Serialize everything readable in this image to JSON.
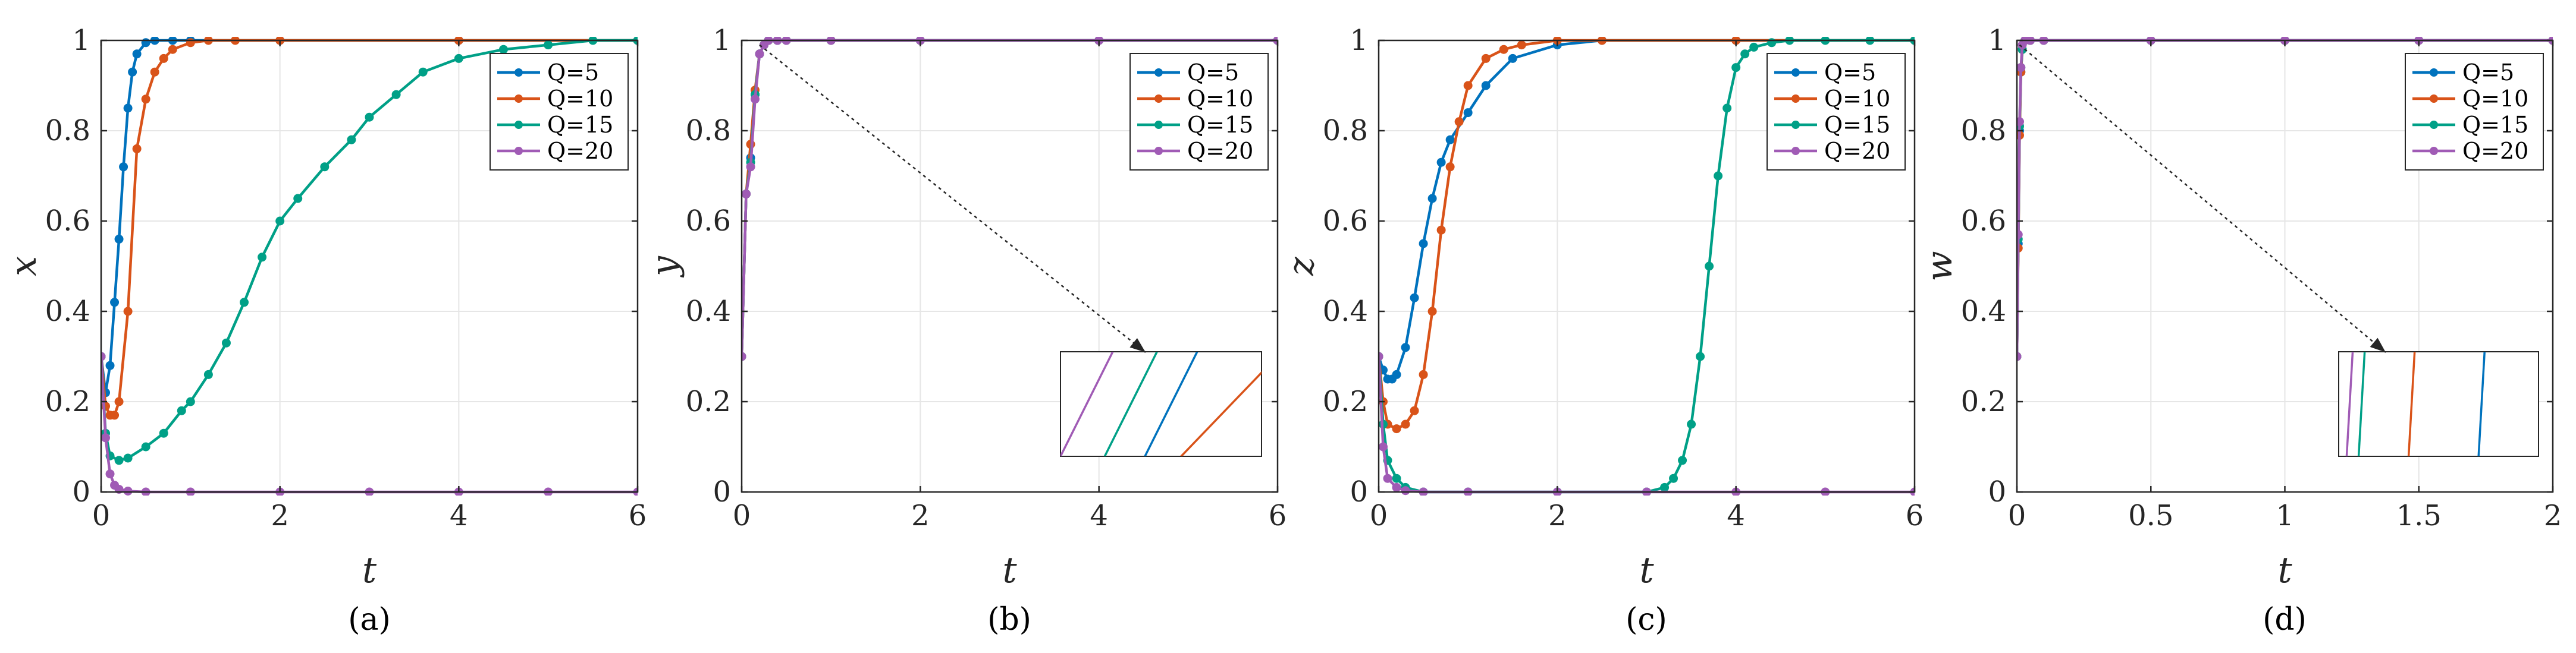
{
  "colors": {
    "Q=5": "#0072BD",
    "Q=10": "#D95319",
    "Q=15": "#00A087",
    "Q=20": "#A05BB5"
  },
  "legend": [
    "Q=5",
    "Q=10",
    "Q=15",
    "Q=20"
  ],
  "chart_data": [
    {
      "type": "line",
      "caption": "(a)",
      "xlabel": "t",
      "ylabel": "x",
      "xlim": [
        0,
        6
      ],
      "ylim": [
        0,
        1
      ],
      "xticks": [
        0,
        2,
        4,
        6
      ],
      "yticks": [
        0,
        0.2,
        0.4,
        0.6,
        0.8,
        1
      ],
      "grid": true,
      "legend_position": "top-right",
      "series": [
        {
          "name": "Q=5",
          "x": [
            0,
            0.05,
            0.1,
            0.15,
            0.2,
            0.25,
            0.3,
            0.35,
            0.4,
            0.5,
            0.6,
            0.8,
            1.0,
            2.0,
            4.0,
            6.0
          ],
          "y": [
            0.3,
            0.22,
            0.28,
            0.42,
            0.56,
            0.72,
            0.85,
            0.93,
            0.97,
            0.995,
            1.0,
            1.0,
            1.0,
            1.0,
            1.0,
            1.0
          ]
        },
        {
          "name": "Q=10",
          "x": [
            0,
            0.05,
            0.1,
            0.15,
            0.2,
            0.3,
            0.4,
            0.5,
            0.6,
            0.7,
            0.8,
            1.0,
            1.2,
            1.5,
            2.0,
            4.0,
            6.0
          ],
          "y": [
            0.3,
            0.19,
            0.17,
            0.17,
            0.2,
            0.4,
            0.76,
            0.87,
            0.93,
            0.96,
            0.98,
            0.995,
            1.0,
            1.0,
            1.0,
            1.0,
            1.0
          ]
        },
        {
          "name": "Q=15",
          "x": [
            0,
            0.05,
            0.1,
            0.2,
            0.3,
            0.5,
            0.7,
            0.9,
            1.0,
            1.2,
            1.4,
            1.6,
            1.8,
            2.0,
            2.2,
            2.5,
            2.8,
            3.0,
            3.3,
            3.6,
            4.0,
            4.5,
            5.0,
            5.5,
            6.0
          ],
          "y": [
            0.3,
            0.13,
            0.08,
            0.07,
            0.075,
            0.1,
            0.13,
            0.18,
            0.2,
            0.26,
            0.33,
            0.42,
            0.52,
            0.6,
            0.65,
            0.72,
            0.78,
            0.83,
            0.88,
            0.93,
            0.96,
            0.98,
            0.99,
            1.0,
            1.0
          ]
        },
        {
          "name": "Q=20",
          "x": [
            0,
            0.05,
            0.1,
            0.15,
            0.2,
            0.3,
            0.5,
            1.0,
            2.0,
            3.0,
            4.0,
            5.0,
            6.0
          ],
          "y": [
            0.3,
            0.12,
            0.04,
            0.015,
            0.006,
            0.002,
            0.0,
            0.0,
            0.0,
            0.0,
            0.0,
            0.0,
            0.0
          ]
        }
      ]
    },
    {
      "type": "line",
      "caption": "(b)",
      "xlabel": "t",
      "ylabel": "y",
      "xlim": [
        0,
        6
      ],
      "ylim": [
        0,
        1
      ],
      "xticks": [
        0,
        2,
        4,
        6
      ],
      "yticks": [
        0,
        0.2,
        0.4,
        0.6,
        0.8,
        1
      ],
      "grid": true,
      "legend_position": "top-right",
      "inset": true,
      "series": [
        {
          "name": "Q=5",
          "x": [
            0,
            0.05,
            0.1,
            0.15,
            0.2,
            0.25,
            0.3,
            0.4,
            0.5,
            1.0,
            2.0,
            4.0,
            6.0
          ],
          "y": [
            0.3,
            0.66,
            0.74,
            0.88,
            0.97,
            0.99,
            1.0,
            1.0,
            1.0,
            1.0,
            1.0,
            1.0,
            1.0
          ]
        },
        {
          "name": "Q=10",
          "x": [
            0,
            0.05,
            0.1,
            0.15,
            0.2,
            0.25,
            0.3,
            0.4,
            0.5,
            1.0,
            2.0,
            4.0,
            6.0
          ],
          "y": [
            0.3,
            0.66,
            0.77,
            0.89,
            0.97,
            0.99,
            1.0,
            1.0,
            1.0,
            1.0,
            1.0,
            1.0,
            1.0
          ]
        },
        {
          "name": "Q=15",
          "x": [
            0,
            0.05,
            0.1,
            0.15,
            0.2,
            0.25,
            0.3,
            0.4,
            0.5,
            1.0,
            2.0,
            4.0,
            6.0
          ],
          "y": [
            0.3,
            0.66,
            0.73,
            0.88,
            0.97,
            0.99,
            1.0,
            1.0,
            1.0,
            1.0,
            1.0,
            1.0,
            1.0
          ]
        },
        {
          "name": "Q=20",
          "x": [
            0,
            0.05,
            0.1,
            0.15,
            0.2,
            0.25,
            0.3,
            0.4,
            0.5,
            1.0,
            2.0,
            4.0,
            6.0
          ],
          "y": [
            0.3,
            0.66,
            0.72,
            0.87,
            0.97,
            0.99,
            1.0,
            1.0,
            1.0,
            1.0,
            1.0,
            1.0,
            1.0
          ]
        }
      ]
    },
    {
      "type": "line",
      "caption": "(c)",
      "xlabel": "t",
      "ylabel": "z",
      "xlim": [
        0,
        6
      ],
      "ylim": [
        0,
        1
      ],
      "xticks": [
        0,
        2,
        4,
        6
      ],
      "yticks": [
        0,
        0.2,
        0.4,
        0.6,
        0.8,
        1
      ],
      "grid": true,
      "legend_position": "top-right",
      "series": [
        {
          "name": "Q=5",
          "x": [
            0,
            0.05,
            0.1,
            0.15,
            0.2,
            0.3,
            0.4,
            0.5,
            0.6,
            0.7,
            0.8,
            1.0,
            1.2,
            1.5,
            2.0,
            2.5,
            4.0,
            6.0
          ],
          "y": [
            0.3,
            0.27,
            0.25,
            0.25,
            0.26,
            0.32,
            0.43,
            0.55,
            0.65,
            0.73,
            0.78,
            0.84,
            0.9,
            0.96,
            0.99,
            1.0,
            1.0,
            1.0
          ]
        },
        {
          "name": "Q=10",
          "x": [
            0,
            0.05,
            0.1,
            0.2,
            0.3,
            0.4,
            0.5,
            0.6,
            0.7,
            0.8,
            0.9,
            1.0,
            1.2,
            1.4,
            1.6,
            2.0,
            2.5,
            4.0,
            6.0
          ],
          "y": [
            0.3,
            0.2,
            0.15,
            0.14,
            0.15,
            0.18,
            0.26,
            0.4,
            0.58,
            0.72,
            0.82,
            0.9,
            0.96,
            0.98,
            0.99,
            1.0,
            1.0,
            1.0,
            1.0
          ]
        },
        {
          "name": "Q=15",
          "x": [
            0,
            0.05,
            0.1,
            0.2,
            0.3,
            0.5,
            1.0,
            2.0,
            3.0,
            3.2,
            3.3,
            3.4,
            3.5,
            3.6,
            3.7,
            3.8,
            3.9,
            4.0,
            4.1,
            4.2,
            4.4,
            4.6,
            5.0,
            5.5,
            6.0
          ],
          "y": [
            0.3,
            0.15,
            0.07,
            0.03,
            0.01,
            0.0,
            0.0,
            0.0,
            0.0,
            0.01,
            0.03,
            0.07,
            0.15,
            0.3,
            0.5,
            0.7,
            0.85,
            0.94,
            0.97,
            0.985,
            0.995,
            1.0,
            1.0,
            1.0,
            1.0
          ]
        },
        {
          "name": "Q=20",
          "x": [
            0,
            0.05,
            0.1,
            0.2,
            0.3,
            0.5,
            1.0,
            2.0,
            3.0,
            4.0,
            5.0,
            6.0
          ],
          "y": [
            0.3,
            0.1,
            0.03,
            0.01,
            0.003,
            0.0,
            0.0,
            0.0,
            0.0,
            0.0,
            0.0,
            0.0
          ]
        }
      ]
    },
    {
      "type": "line",
      "caption": "(d)",
      "xlabel": "t",
      "ylabel": "w",
      "xlim": [
        0,
        2
      ],
      "ylim": [
        0,
        1
      ],
      "xticks": [
        0,
        0.5,
        1,
        1.5,
        2
      ],
      "yticks": [
        0,
        0.2,
        0.4,
        0.6,
        0.8,
        1
      ],
      "grid": true,
      "legend_position": "top-right",
      "inset": true,
      "series": [
        {
          "name": "Q=5",
          "x": [
            0,
            0.005,
            0.01,
            0.015,
            0.02,
            0.03,
            0.05,
            0.1,
            0.5,
            1.0,
            1.5,
            2.0
          ],
          "y": [
            0.3,
            0.55,
            0.8,
            0.93,
            0.98,
            1.0,
            1.0,
            1.0,
            1.0,
            1.0,
            1.0,
            1.0
          ]
        },
        {
          "name": "Q=10",
          "x": [
            0,
            0.005,
            0.01,
            0.015,
            0.02,
            0.03,
            0.05,
            0.1,
            0.5,
            1.0,
            1.5,
            2.0
          ],
          "y": [
            0.3,
            0.54,
            0.79,
            0.93,
            0.98,
            1.0,
            1.0,
            1.0,
            1.0,
            1.0,
            1.0,
            1.0
          ]
        },
        {
          "name": "Q=15",
          "x": [
            0,
            0.005,
            0.01,
            0.015,
            0.02,
            0.03,
            0.05,
            0.1,
            0.5,
            1.0,
            1.5,
            2.0
          ],
          "y": [
            0.3,
            0.56,
            0.81,
            0.94,
            0.98,
            1.0,
            1.0,
            1.0,
            1.0,
            1.0,
            1.0,
            1.0
          ]
        },
        {
          "name": "Q=20",
          "x": [
            0,
            0.005,
            0.01,
            0.015,
            0.02,
            0.03,
            0.05,
            0.1,
            0.5,
            1.0,
            1.5,
            2.0
          ],
          "y": [
            0.3,
            0.57,
            0.82,
            0.94,
            0.99,
            1.0,
            1.0,
            1.0,
            1.0,
            1.0,
            1.0,
            1.0
          ]
        }
      ]
    }
  ]
}
